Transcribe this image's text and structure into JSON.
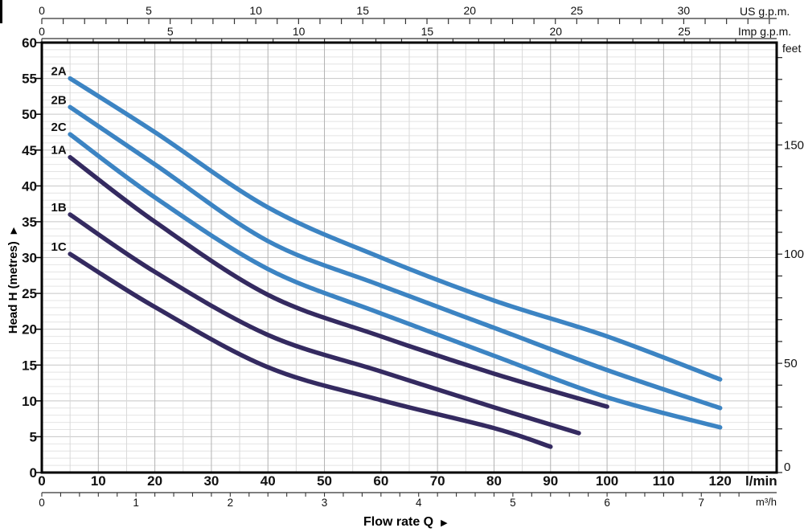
{
  "colors": {
    "blue_family": "#3c84c3",
    "navy_family": "#342a60",
    "grid_minor_h": "#e4e4e4",
    "grid_major_h": "#c6c6c6",
    "grid_minor_v": "#d9d9d9",
    "grid_major_v": "#b2b2b2",
    "border": "#000000",
    "axis_line": "#333333",
    "text": "#111111"
  },
  "labels": {
    "flow_title": "Flow rate  Q",
    "head_title": "Head H (metres)",
    "right_arrow": "▶",
    "up_arrow": "▶"
  },
  "chart_data": {
    "type": "line",
    "title": "",
    "xlabel": "Flow rate Q",
    "ylabel": "Head H (metres)",
    "grid": true,
    "legend_position": "curve-start-labels",
    "x_axes": {
      "lmin": {
        "unit": "l/min",
        "label_ticks": [
          0,
          10,
          20,
          30,
          40,
          50,
          60,
          70,
          80,
          90,
          100,
          110,
          120
        ],
        "minor_step": 5,
        "range": [
          0,
          130
        ]
      },
      "m3h": {
        "unit": "m³/h",
        "label_ticks": [
          0,
          1,
          2,
          3,
          4,
          5,
          6,
          7
        ],
        "minor_step": 0.2,
        "max_minor": 7.4,
        "lmin_per_unit": 16.6667
      },
      "us_gpm": {
        "unit": "US g.p.m.",
        "label_ticks": [
          0,
          5,
          10,
          15,
          20,
          25,
          30
        ],
        "minor_step": 1,
        "max_minor": 34,
        "lmin_per_unit": 3.7854
      },
      "imp_gpm": {
        "unit": "Imp g.p.m.",
        "label_ticks": [
          0,
          5,
          10,
          15,
          20,
          25
        ],
        "minor_step": 1,
        "max_minor": 27,
        "lmin_per_unit": 4.5461
      }
    },
    "y_axes": {
      "metres": {
        "unit": "",
        "label_ticks": [
          0,
          5,
          10,
          15,
          20,
          25,
          30,
          35,
          40,
          45,
          50,
          55,
          60
        ],
        "minor_step": 1,
        "range": [
          0,
          60
        ]
      },
      "feet": {
        "unit": "feet",
        "label_ticks": [
          0,
          50,
          100,
          150
        ],
        "minor_step": 10,
        "max_minor": 190,
        "m_per_unit": 0.3048
      }
    },
    "series": [
      {
        "name": "2A",
        "color": "#3c84c3",
        "points": [
          [
            5,
            55
          ],
          [
            20,
            47.5
          ],
          [
            40,
            37
          ],
          [
            60,
            30
          ],
          [
            80,
            24
          ],
          [
            100,
            19
          ],
          [
            120,
            13
          ]
        ]
      },
      {
        "name": "2B",
        "color": "#3c84c3",
        "points": [
          [
            5,
            51
          ],
          [
            20,
            43
          ],
          [
            40,
            32.3
          ],
          [
            60,
            26.1
          ],
          [
            80,
            20.2
          ],
          [
            100,
            14.3
          ],
          [
            120,
            9
          ]
        ]
      },
      {
        "name": "2C",
        "color": "#3c84c3",
        "points": [
          [
            5,
            47.2
          ],
          [
            20,
            38.4
          ],
          [
            40,
            28.4
          ],
          [
            60,
            22.2
          ],
          [
            80,
            16.3
          ],
          [
            100,
            10.5
          ],
          [
            120,
            6.3
          ]
        ]
      },
      {
        "name": "1A",
        "color": "#342a60",
        "points": [
          [
            5,
            44
          ],
          [
            20,
            35
          ],
          [
            40,
            24.8
          ],
          [
            60,
            19
          ],
          [
            80,
            13.8
          ],
          [
            100,
            9.2
          ]
        ]
      },
      {
        "name": "1B",
        "color": "#342a60",
        "points": [
          [
            5,
            36
          ],
          [
            20,
            28
          ],
          [
            40,
            19.2
          ],
          [
            60,
            14.1
          ],
          [
            80,
            9.1
          ],
          [
            95,
            5.5
          ]
        ]
      },
      {
        "name": "1C",
        "color": "#342a60",
        "points": [
          [
            5,
            30.5
          ],
          [
            20,
            23.1
          ],
          [
            40,
            14.7
          ],
          [
            60,
            10.1
          ],
          [
            80,
            6.2
          ],
          [
            90,
            3.6
          ]
        ]
      }
    ]
  }
}
